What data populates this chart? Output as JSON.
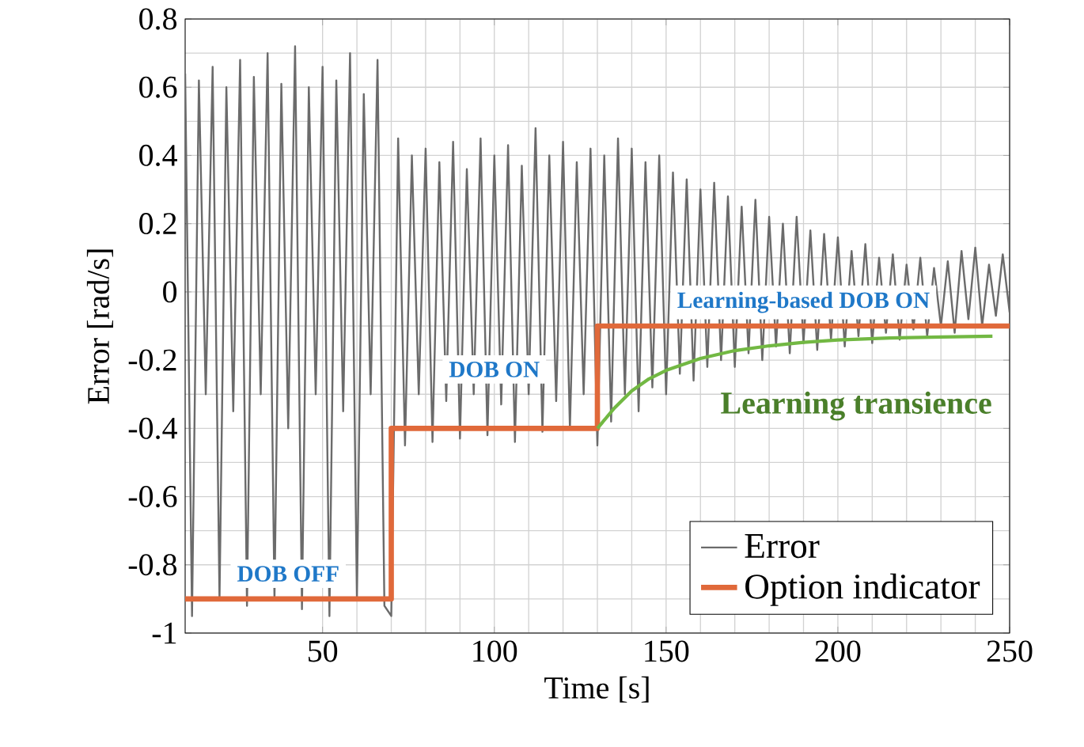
{
  "chart_data": {
    "type": "line",
    "xlabel": "Time [s]",
    "ylabel": "Error [rad/s]",
    "xlim": [
      10,
      250
    ],
    "ylim": [
      -1,
      0.8
    ],
    "xticks": [
      50,
      100,
      150,
      200,
      250
    ],
    "yticks": [
      -1,
      -0.8,
      -0.6,
      -0.4,
      -0.2,
      0,
      0.2,
      0.4,
      0.6,
      0.8
    ],
    "grid": true,
    "legend": "bottom right",
    "series": [
      {
        "name": "Error",
        "type": "line",
        "color": "#6b6b6b",
        "x": [
          10,
          12,
          14,
          16,
          18,
          20,
          22,
          24,
          26,
          28,
          30,
          32,
          34,
          36,
          38,
          40,
          42,
          44,
          46,
          48,
          50,
          52,
          54,
          56,
          58,
          60,
          62,
          64,
          66,
          68,
          70,
          72,
          74,
          76,
          78,
          80,
          82,
          84,
          86,
          88,
          90,
          92,
          94,
          96,
          98,
          100,
          102,
          104,
          106,
          108,
          110,
          112,
          114,
          116,
          118,
          120,
          122,
          124,
          126,
          128,
          130,
          132,
          134,
          136,
          138,
          140,
          142,
          144,
          146,
          148,
          150,
          152,
          154,
          156,
          158,
          160,
          162,
          164,
          166,
          168,
          170,
          172,
          174,
          176,
          178,
          180,
          182,
          184,
          186,
          188,
          190,
          192,
          194,
          196,
          198,
          200,
          202,
          204,
          206,
          208,
          210,
          212,
          214,
          216,
          218,
          220,
          222,
          224,
          226,
          228,
          230,
          232,
          234,
          236,
          238,
          240,
          242,
          244,
          246,
          248,
          250
        ],
        "values": [
          0.64,
          -0.95,
          0.62,
          -0.3,
          0.66,
          -0.9,
          0.6,
          -0.35,
          0.68,
          -0.92,
          0.63,
          -0.3,
          0.7,
          -0.9,
          0.61,
          -0.4,
          0.72,
          -0.93,
          0.6,
          -0.3,
          0.66,
          -0.95,
          0.62,
          -0.35,
          0.7,
          -0.9,
          0.58,
          -0.3,
          0.68,
          -0.92,
          -0.95,
          0.45,
          -0.45,
          0.4,
          -0.3,
          0.42,
          -0.44,
          0.38,
          -0.32,
          0.44,
          -0.43,
          0.36,
          -0.3,
          0.45,
          -0.42,
          0.4,
          -0.33,
          0.43,
          -0.44,
          0.37,
          -0.3,
          0.48,
          -0.41,
          0.4,
          -0.32,
          0.44,
          -0.4,
          0.38,
          -0.3,
          0.42,
          -0.45,
          0.4,
          -0.38,
          0.45,
          -0.3,
          0.42,
          -0.35,
          0.38,
          -0.28,
          0.4,
          -0.3,
          0.35,
          -0.24,
          0.33,
          -0.26,
          0.3,
          -0.22,
          0.32,
          -0.2,
          0.28,
          -0.22,
          0.25,
          -0.18,
          0.27,
          -0.2,
          0.22,
          -0.16,
          0.2,
          -0.18,
          0.22,
          -0.15,
          0.18,
          -0.17,
          0.17,
          -0.14,
          0.16,
          -0.16,
          0.12,
          -0.13,
          0.14,
          -0.15,
          0.1,
          -0.12,
          0.11,
          -0.14,
          0.08,
          -0.11,
          0.1,
          -0.13,
          0.07,
          -0.1,
          0.09,
          -0.12,
          0.12,
          -0.08,
          0.13,
          -0.1,
          0.08,
          -0.07,
          0.11,
          -0.06
        ]
      },
      {
        "name": "Option indicator",
        "type": "step",
        "color": "#e0693a",
        "x": [
          10,
          70,
          130,
          250
        ],
        "values": [
          -0.9,
          -0.4,
          -0.1,
          -0.1
        ]
      },
      {
        "type": "line",
        "color": "#72b843",
        "x": [
          130,
          135,
          140,
          145,
          150,
          160,
          170,
          180,
          190,
          200,
          215,
          230,
          245
        ],
        "values": [
          -0.4,
          -0.34,
          -0.29,
          -0.255,
          -0.23,
          -0.195,
          -0.172,
          -0.158,
          -0.148,
          -0.141,
          -0.135,
          -0.132,
          -0.13
        ]
      }
    ],
    "annotations": [
      "DOB OFF",
      "DOB ON",
      "Learning-based DOB ON",
      "Learning transience"
    ]
  }
}
